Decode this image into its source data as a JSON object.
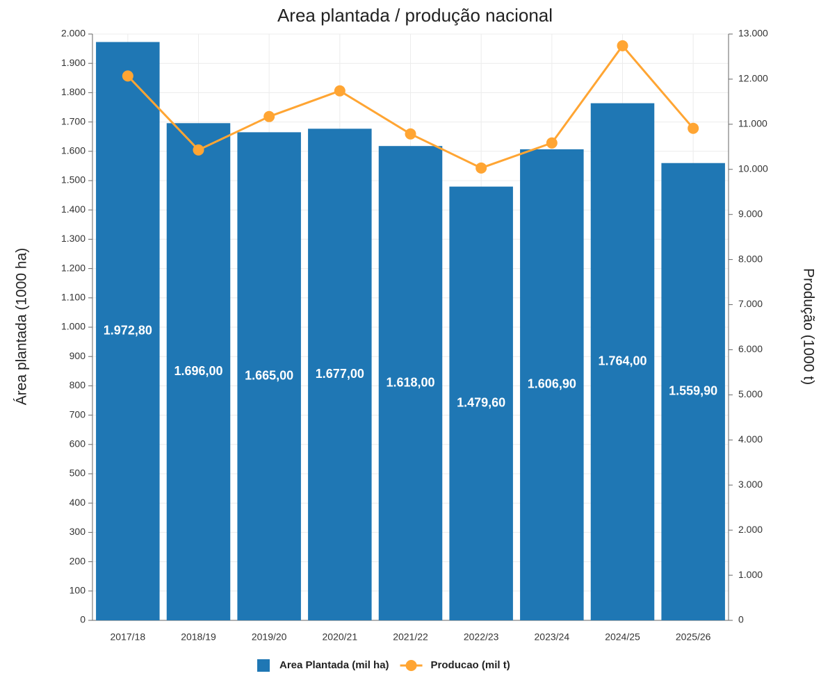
{
  "chart_data": {
    "type": "bar",
    "title": "Area plantada / produção nacional",
    "ylabel": "Área plantada (1000 ha)",
    "y2label": "Produção (1000 t)",
    "categories": [
      "2017/18",
      "2018/19",
      "2019/20",
      "2020/21",
      "2021/22",
      "2022/23",
      "2023/24",
      "2024/25",
      "2025/26"
    ],
    "series": [
      {
        "name": "Area Plantada (mil ha)",
        "type": "bar",
        "color": "#1f77b4",
        "values": [
          1972.8,
          1696,
          1665,
          1677,
          1618,
          1479.6,
          1606.9,
          1764,
          1559.9
        ],
        "value_labels": [
          "1.972,80",
          "1.696,00",
          "1.665,00",
          "1.677,00",
          "1.618,00",
          "1.479,60",
          "1.606,90",
          "1.764,00",
          "1.559,90"
        ]
      },
      {
        "name": "Producao (mil t)",
        "type": "line",
        "axis": "y2",
        "color": "#ffa533",
        "values": [
          12070,
          10430,
          11170,
          11740,
          10785,
          10030,
          10585,
          12740,
          10910
        ]
      }
    ],
    "ylim": [
      0,
      2000
    ],
    "yticks": [
      0,
      100,
      200,
      300,
      400,
      500,
      600,
      700,
      800,
      900,
      {
        "value": 1000,
        "label": "1.000"
      },
      {
        "value": 1100,
        "label": "1.100"
      },
      {
        "value": 1200,
        "label": "1.200"
      },
      {
        "value": 1300,
        "label": "1.300"
      },
      {
        "value": 1400,
        "label": "1.400"
      },
      {
        "value": 1500,
        "label": "1.500"
      },
      {
        "value": 1600,
        "label": "1.600"
      },
      {
        "value": 1700,
        "label": "1.700"
      },
      {
        "value": 1800,
        "label": "1.800"
      },
      {
        "value": 1900,
        "label": "1.900"
      },
      {
        "value": 2000,
        "label": "2.000"
      }
    ],
    "y2lim": [
      0,
      13000
    ],
    "y2ticks": [
      0,
      {
        "value": 1000,
        "label": "1.000"
      },
      {
        "value": 2000,
        "label": "2.000"
      },
      {
        "value": 3000,
        "label": "3.000"
      },
      {
        "value": 4000,
        "label": "4.000"
      },
      {
        "value": 5000,
        "label": "5.000"
      },
      {
        "value": 6000,
        "label": "6.000"
      },
      {
        "value": 7000,
        "label": "7.000"
      },
      {
        "value": 8000,
        "label": "8.000"
      },
      {
        "value": 9000,
        "label": "9.000"
      },
      {
        "value": 10000,
        "label": "10.000"
      },
      {
        "value": 11000,
        "label": "11.000"
      },
      {
        "value": 12000,
        "label": "12.000"
      },
      {
        "value": 13000,
        "label": "13.000"
      }
    ],
    "grid": true,
    "legend": "bottom"
  }
}
